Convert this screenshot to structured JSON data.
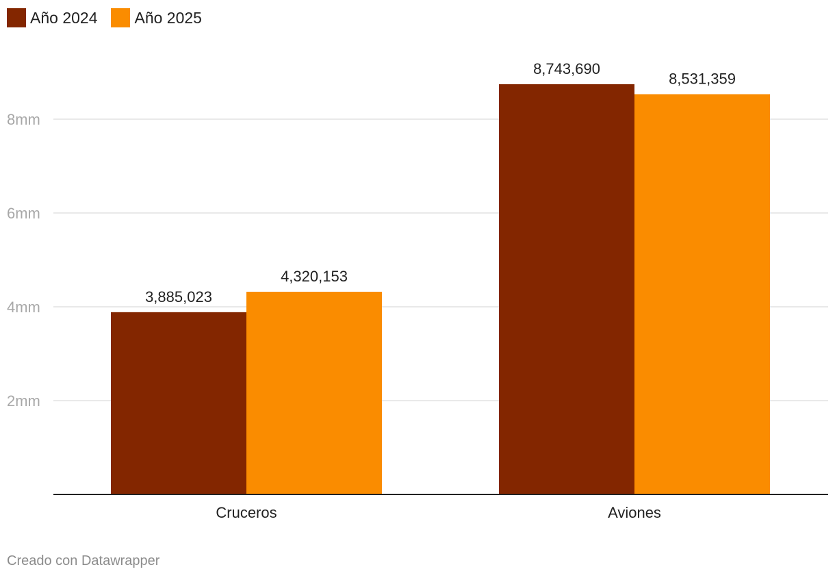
{
  "chart_data": {
    "type": "bar",
    "categories": [
      "Cruceros",
      "Aviones"
    ],
    "series": [
      {
        "name": "Año 2024",
        "color": "#832600",
        "values": [
          3885023,
          8743690
        ],
        "labels": [
          "3,885,023",
          "8,743,690"
        ]
      },
      {
        "name": "Año 2025",
        "color": "#fa8c00",
        "values": [
          4320153,
          8531359
        ],
        "labels": [
          "4,320,153",
          "8,531,359"
        ]
      }
    ],
    "yticks": [
      2000000,
      4000000,
      6000000,
      8000000
    ],
    "ytick_labels": [
      "2mm",
      "4mm",
      "6mm",
      "8mm"
    ],
    "ylim": [
      0,
      8743690
    ],
    "grid": true,
    "legend": "top-left",
    "title": "",
    "xlabel": "",
    "ylabel": ""
  },
  "footer": {
    "credit": "Creado con Datawrapper"
  }
}
